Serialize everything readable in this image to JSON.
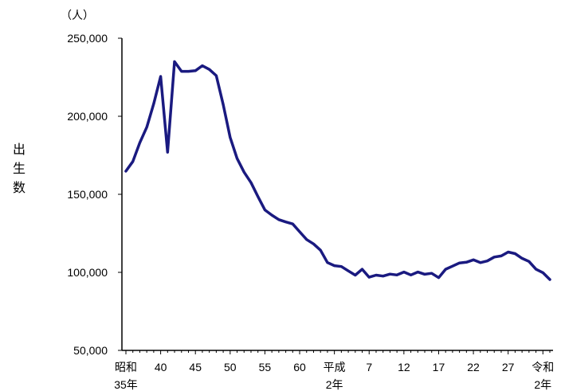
{
  "chart_data": {
    "type": "line",
    "title": "",
    "unit": "（人）",
    "ylabel": "出生数",
    "ylim": [
      50000,
      250000
    ],
    "y_ticks": [
      "250,000",
      "200,000",
      "150,000",
      "100,000",
      "50,000"
    ],
    "y_tick_values": [
      250000,
      200000,
      150000,
      100000,
      50000
    ],
    "x_tick_labels": [
      {
        "line1": "昭和",
        "line2": "35年",
        "index": 0
      },
      {
        "line1": "40",
        "line2": "",
        "index": 5
      },
      {
        "line1": "45",
        "line2": "",
        "index": 10
      },
      {
        "line1": "50",
        "line2": "",
        "index": 15
      },
      {
        "line1": "55",
        "line2": "",
        "index": 20
      },
      {
        "line1": "60",
        "line2": "",
        "index": 25
      },
      {
        "line1": "平成",
        "line2": "2年",
        "index": 30
      },
      {
        "line1": "7",
        "line2": "",
        "index": 35
      },
      {
        "line1": "12",
        "line2": "",
        "index": 40
      },
      {
        "line1": "17",
        "line2": "",
        "index": 45
      },
      {
        "line1": "22",
        "line2": "",
        "index": 50
      },
      {
        "line1": "27",
        "line2": "",
        "index": 55
      },
      {
        "line1": "令和",
        "line2": "2年",
        "index": 60
      }
    ],
    "grid": false,
    "legend": "none",
    "line_color": "#1a1a80",
    "values": [
      164822,
      171000,
      183000,
      193000,
      208000,
      225500,
      177000,
      235000,
      228800,
      228800,
      229200,
      232400,
      230000,
      226000,
      207500,
      186500,
      173000,
      164200,
      157500,
      148500,
      140000,
      136700,
      133800,
      132300,
      131000,
      126000,
      121000,
      118200,
      114200,
      106300,
      104300,
      103700,
      100900,
      98200,
      102000,
      96900,
      98200,
      97600,
      98900,
      98300,
      100200,
      98300,
      100200,
      98800,
      99400,
      96600,
      102000,
      104000,
      106000,
      106500,
      108000,
      106200,
      107300,
      109800,
      110500,
      113000,
      112000,
      109000,
      107000,
      102000,
      99800,
      95400
    ]
  }
}
